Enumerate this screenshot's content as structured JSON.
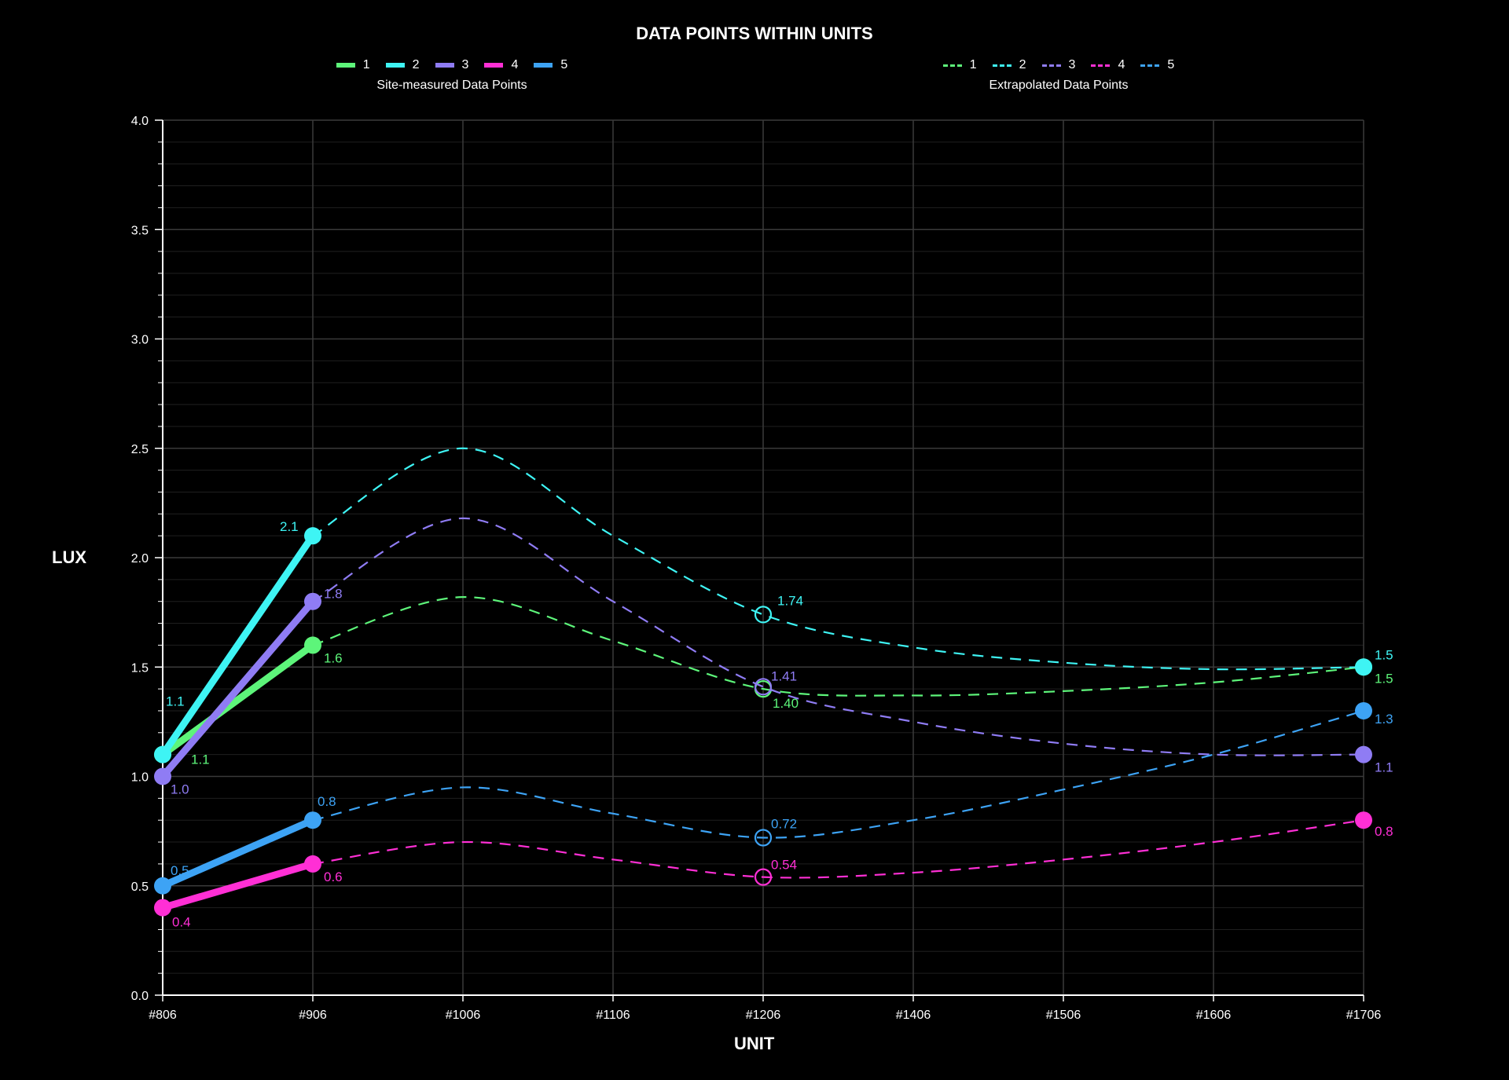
{
  "chart_data": {
    "type": "line",
    "title": "DATA POINTS WITHIN UNITS",
    "xlabel": "UNIT",
    "ylabel": "LUX",
    "categories": [
      "#806",
      "#906",
      "#1006",
      "#1106",
      "#1206",
      "#1406",
      "#1506",
      "#1606",
      "#1706"
    ],
    "ylim": [
      0,
      4.0
    ],
    "yticks": [
      "0.0",
      "0.5",
      "1.0",
      "1.5",
      "2.0",
      "2.5",
      "3.0",
      "3.5",
      "4.0"
    ],
    "grid": true,
    "legends": [
      {
        "caption": "Site-measured Data Points",
        "style": "solid",
        "entries": [
          "1",
          "2",
          "3",
          "4",
          "5"
        ]
      },
      {
        "caption": "Extrapolated Data Points",
        "style": "dashed",
        "entries": [
          "1",
          "2",
          "3",
          "4",
          "5"
        ]
      }
    ],
    "series": [
      {
        "name": "1",
        "color": "#5df57a",
        "measured": [
          {
            "x": "#806",
            "y": 1.1
          },
          {
            "x": "#906",
            "y": 1.6
          }
        ],
        "extrapolated": [
          {
            "x": "#906",
            "y": 1.6
          },
          {
            "x": "#1006",
            "y": 1.82
          },
          {
            "x": "#1106",
            "y": 1.62
          },
          {
            "x": "#1206",
            "y": 1.4
          },
          {
            "x": "#1406",
            "y": 1.37
          },
          {
            "x": "#1506",
            "y": 1.39
          },
          {
            "x": "#1606",
            "y": 1.43
          },
          {
            "x": "#1706",
            "y": 1.5
          }
        ],
        "labels": [
          {
            "x": "#806",
            "y": 1.1,
            "text": "1.1"
          },
          {
            "x": "#906",
            "y": 1.6,
            "text": "1.6"
          },
          {
            "x": "#1206",
            "y": 1.4,
            "text": "1.40"
          },
          {
            "x": "#1706",
            "y": 1.5,
            "text": "1.5"
          }
        ]
      },
      {
        "name": "2",
        "color": "#3ef4f4",
        "measured": [
          {
            "x": "#806",
            "y": 1.1
          },
          {
            "x": "#906",
            "y": 2.1
          }
        ],
        "extrapolated": [
          {
            "x": "#906",
            "y": 2.1
          },
          {
            "x": "#1006",
            "y": 2.5
          },
          {
            "x": "#1106",
            "y": 2.1
          },
          {
            "x": "#1206",
            "y": 1.74
          },
          {
            "x": "#1406",
            "y": 1.59
          },
          {
            "x": "#1506",
            "y": 1.52
          },
          {
            "x": "#1606",
            "y": 1.49
          },
          {
            "x": "#1706",
            "y": 1.5
          }
        ],
        "labels": [
          {
            "x": "#806",
            "y": 1.1,
            "text": "1.1"
          },
          {
            "x": "#906",
            "y": 2.1,
            "text": "2.1"
          },
          {
            "x": "#1206",
            "y": 1.74,
            "text": "1.74"
          },
          {
            "x": "#1706",
            "y": 1.5,
            "text": "1.5"
          }
        ]
      },
      {
        "name": "3",
        "color": "#8f7cf4",
        "measured": [
          {
            "x": "#806",
            "y": 1.0
          },
          {
            "x": "#906",
            "y": 1.8
          }
        ],
        "extrapolated": [
          {
            "x": "#906",
            "y": 1.8
          },
          {
            "x": "#1006",
            "y": 2.18
          },
          {
            "x": "#1106",
            "y": 1.8
          },
          {
            "x": "#1206",
            "y": 1.41
          },
          {
            "x": "#1406",
            "y": 1.25
          },
          {
            "x": "#1506",
            "y": 1.15
          },
          {
            "x": "#1606",
            "y": 1.1
          },
          {
            "x": "#1706",
            "y": 1.1
          }
        ],
        "labels": [
          {
            "x": "#806",
            "y": 1.0,
            "text": "1.0"
          },
          {
            "x": "#906",
            "y": 1.8,
            "text": "1.8"
          },
          {
            "x": "#1206",
            "y": 1.41,
            "text": "1.41"
          },
          {
            "x": "#1706",
            "y": 1.1,
            "text": "1.1"
          }
        ]
      },
      {
        "name": "4",
        "color": "#ff2fd5",
        "measured": [
          {
            "x": "#806",
            "y": 0.4
          },
          {
            "x": "#906",
            "y": 0.6
          }
        ],
        "extrapolated": [
          {
            "x": "#906",
            "y": 0.6
          },
          {
            "x": "#1006",
            "y": 0.7
          },
          {
            "x": "#1106",
            "y": 0.62
          },
          {
            "x": "#1206",
            "y": 0.54
          },
          {
            "x": "#1406",
            "y": 0.56
          },
          {
            "x": "#1506",
            "y": 0.62
          },
          {
            "x": "#1606",
            "y": 0.7
          },
          {
            "x": "#1706",
            "y": 0.8
          }
        ],
        "labels": [
          {
            "x": "#806",
            "y": 0.4,
            "text": "0.4"
          },
          {
            "x": "#906",
            "y": 0.6,
            "text": "0.6"
          },
          {
            "x": "#1206",
            "y": 0.54,
            "text": "0.54"
          },
          {
            "x": "#1706",
            "y": 0.8,
            "text": "0.8"
          }
        ]
      },
      {
        "name": "5",
        "color": "#3da3f5",
        "measured": [
          {
            "x": "#806",
            "y": 0.5
          },
          {
            "x": "#906",
            "y": 0.8
          }
        ],
        "extrapolated": [
          {
            "x": "#906",
            "y": 0.8
          },
          {
            "x": "#1006",
            "y": 0.95
          },
          {
            "x": "#1106",
            "y": 0.83
          },
          {
            "x": "#1206",
            "y": 0.72
          },
          {
            "x": "#1406",
            "y": 0.8
          },
          {
            "x": "#1506",
            "y": 0.94
          },
          {
            "x": "#1606",
            "y": 1.1
          },
          {
            "x": "#1706",
            "y": 1.3
          }
        ],
        "labels": [
          {
            "x": "#806",
            "y": 0.5,
            "text": "0.5"
          },
          {
            "x": "#906",
            "y": 0.8,
            "text": "0.8"
          },
          {
            "x": "#1206",
            "y": 0.72,
            "text": "0.72"
          },
          {
            "x": "#1706",
            "y": 1.3,
            "text": "1.3"
          }
        ]
      }
    ],
    "hollow_markers_at": "#1206",
    "colors": {
      "background": "#000000",
      "grid": "#3a3a3a",
      "axis": "#ffffff",
      "text": "#ffffff"
    }
  }
}
